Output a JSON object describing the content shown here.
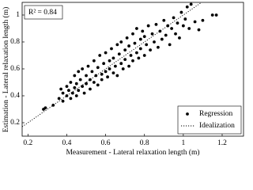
{
  "chart_data": {
    "type": "scatter",
    "x_label": "Measurement - Lateral relaxation length (m)",
    "y_label": "Estimation - Lateral relaxation length (m)",
    "annotation": "R² = 0.84",
    "xlim": [
      0.17,
      1.31
    ],
    "ylim": [
      0.1,
      1.094
    ],
    "xticks": [
      0.2,
      0.4,
      0.6,
      0.8,
      1,
      1.2
    ],
    "yticks": [
      0.2,
      0.4,
      0.6,
      0.8,
      1
    ],
    "grid": false,
    "legend": "bottom-right",
    "x": [
      0.28,
      0.29,
      0.33,
      0.36,
      0.37,
      0.38,
      0.38,
      0.4,
      0.4,
      0.41,
      0.42,
      0.42,
      0.43,
      0.44,
      0.44,
      0.45,
      0.45,
      0.46,
      0.46,
      0.47,
      0.48,
      0.48,
      0.49,
      0.5,
      0.5,
      0.51,
      0.52,
      0.52,
      0.53,
      0.54,
      0.54,
      0.55,
      0.56,
      0.56,
      0.57,
      0.58,
      0.58,
      0.59,
      0.6,
      0.6,
      0.61,
      0.62,
      0.62,
      0.63,
      0.64,
      0.64,
      0.65,
      0.66,
      0.66,
      0.67,
      0.68,
      0.68,
      0.69,
      0.7,
      0.7,
      0.71,
      0.72,
      0.72,
      0.73,
      0.74,
      0.74,
      0.75,
      0.76,
      0.76,
      0.77,
      0.78,
      0.78,
      0.79,
      0.8,
      0.8,
      0.81,
      0.82,
      0.83,
      0.84,
      0.85,
      0.86,
      0.87,
      0.88,
      0.89,
      0.9,
      0.91,
      0.92,
      0.93,
      0.94,
      0.95,
      0.96,
      0.97,
      0.98,
      0.99,
      1.0,
      1.01,
      1.02,
      1.03,
      1.04,
      1.06,
      1.08,
      1.1,
      1.15,
      1.17
    ],
    "series": [
      {
        "name": "Regression",
        "color": "#000000",
        "values": [
          0.3,
          0.31,
          0.33,
          0.38,
          0.45,
          0.42,
          0.36,
          0.47,
          0.4,
          0.44,
          0.38,
          0.5,
          0.42,
          0.46,
          0.55,
          0.4,
          0.49,
          0.44,
          0.58,
          0.52,
          0.47,
          0.6,
          0.42,
          0.55,
          0.49,
          0.62,
          0.52,
          0.45,
          0.58,
          0.5,
          0.66,
          0.55,
          0.48,
          0.61,
          0.7,
          0.56,
          0.52,
          0.64,
          0.58,
          0.72,
          0.54,
          0.66,
          0.6,
          0.75,
          0.57,
          0.68,
          0.62,
          0.78,
          0.55,
          0.71,
          0.64,
          0.8,
          0.6,
          0.74,
          0.67,
          0.83,
          0.62,
          0.77,
          0.7,
          0.86,
          0.66,
          0.79,
          0.72,
          0.9,
          0.68,
          0.82,
          0.75,
          0.88,
          0.7,
          0.84,
          0.78,
          0.92,
          0.74,
          0.86,
          0.8,
          0.93,
          0.76,
          0.88,
          0.82,
          0.96,
          0.85,
          0.92,
          0.78,
          0.9,
          0.98,
          0.86,
          0.94,
          0.83,
          1.02,
          0.92,
          0.97,
          1.06,
          0.9,
          1.08,
          0.95,
          0.89,
          0.96,
          1.0,
          1.0
        ]
      }
    ],
    "reference_line": {
      "name": "Idealization",
      "color": "#000000"
    }
  }
}
